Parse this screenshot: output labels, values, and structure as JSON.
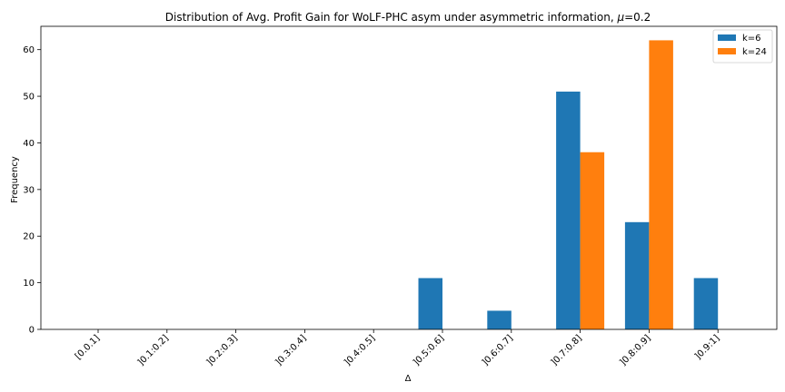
{
  "chart_data": {
    "type": "bar",
    "title_main": "Distribution of Avg. Profit Gain for WoLF-PHC asym under asymmetric information, ",
    "title_mu": "μ",
    "title_tail": "=0.2",
    "xlabel": "Δ",
    "ylabel": "Frequency",
    "categories": [
      "[0.0.1]",
      "]0.1:0.2]",
      "]0.2:0.3]",
      "]0.3:0.4]",
      "]0.4:0.5]",
      "]0.5:0.6]",
      "]0.6:0.7]",
      "]0.7:0.8]",
      "]0.8:0.9]",
      "]0.9:1]"
    ],
    "series": [
      {
        "name": "k=6",
        "color": "#1f77b4",
        "values": [
          0,
          0,
          0,
          0,
          0,
          11,
          4,
          51,
          23,
          11
        ]
      },
      {
        "name": "k=24",
        "color": "#ff7f0e",
        "values": [
          0,
          0,
          0,
          0,
          0,
          0,
          0,
          38,
          62,
          0
        ]
      }
    ],
    "ylim": [
      0,
      65
    ],
    "yticks": [
      0,
      10,
      20,
      30,
      40,
      50,
      60
    ],
    "grid": false,
    "legend_position": "top-right"
  }
}
